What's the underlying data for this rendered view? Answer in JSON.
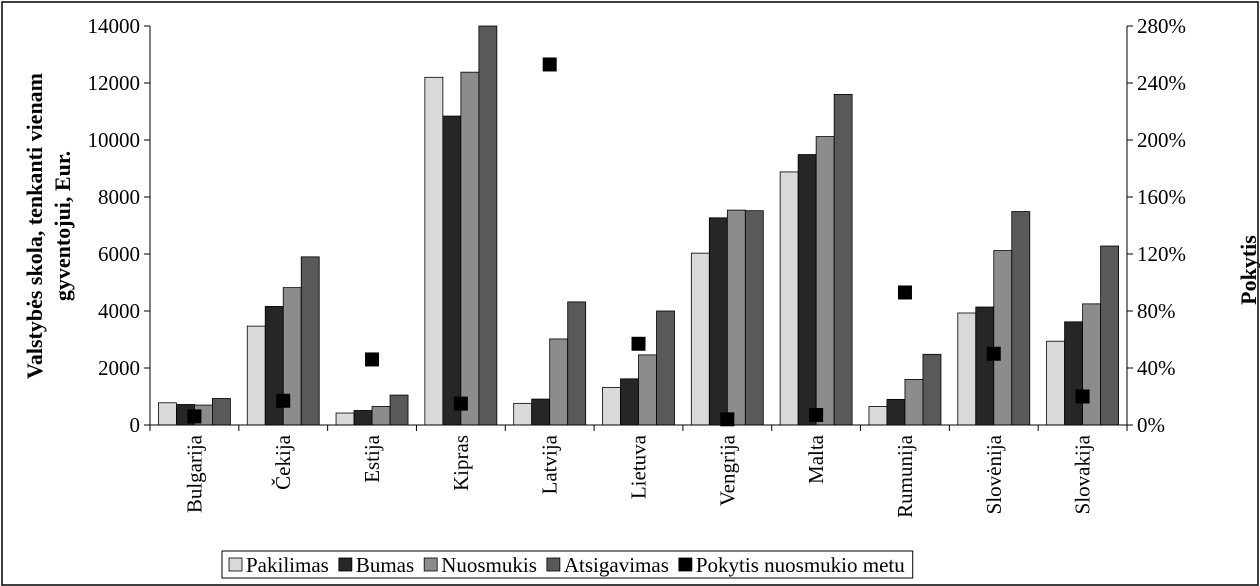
{
  "chart_data": {
    "type": "bar",
    "categories": [
      "Bulgarija",
      "Čekija",
      "Estija",
      "Kipras",
      "Latvija",
      "Lietuva",
      "Vengrija",
      "Malta",
      "Rumunija",
      "Slovėnija",
      "Slovakija"
    ],
    "series": [
      {
        "name": "Pakilimas",
        "color": "#d9d9d9",
        "values": [
          780,
          3470,
          420,
          12200,
          760,
          1320,
          6030,
          8880,
          650,
          3930,
          2940
        ]
      },
      {
        "name": "Bumas",
        "color": "#262626",
        "values": [
          720,
          4160,
          510,
          10840,
          910,
          1620,
          7270,
          9490,
          900,
          4140,
          3620
        ]
      },
      {
        "name": "Nuosmukis",
        "color": "#8c8c8c",
        "values": [
          700,
          4820,
          650,
          12380,
          3020,
          2460,
          7540,
          10120,
          1600,
          6120,
          4250
        ]
      },
      {
        "name": "Atsigavimas",
        "color": "#595959",
        "values": [
          930,
          5900,
          1050,
          14000,
          4320,
          4000,
          7520,
          11600,
          2480,
          7490,
          6280
        ]
      }
    ],
    "secondary_series": {
      "name": "Pokytis nuosmukio metu",
      "type": "scatter",
      "color": "#000000",
      "axis": "right",
      "values": [
        6,
        17,
        46,
        15,
        253,
        57,
        4,
        7,
        93,
        50,
        20
      ]
    },
    "ylabel": "Valstybės skola, tenkanti vienam gyventojui, Eur.",
    "ylabel_lines": [
      "Valstybės skola, tenkanti vienam",
      "gyventojui, Eur."
    ],
    "y2label": "Pokytis",
    "ylim": [
      0,
      14000
    ],
    "y2lim": [
      0,
      280
    ],
    "yticks": [
      "0",
      "2000",
      "4000",
      "6000",
      "8000",
      "10000",
      "12000",
      "14000"
    ],
    "y2ticks": [
      "0%",
      "40%",
      "80%",
      "120%",
      "160%",
      "200%",
      "240%",
      "280%"
    ],
    "grid": false,
    "legend_position": "bottom"
  }
}
